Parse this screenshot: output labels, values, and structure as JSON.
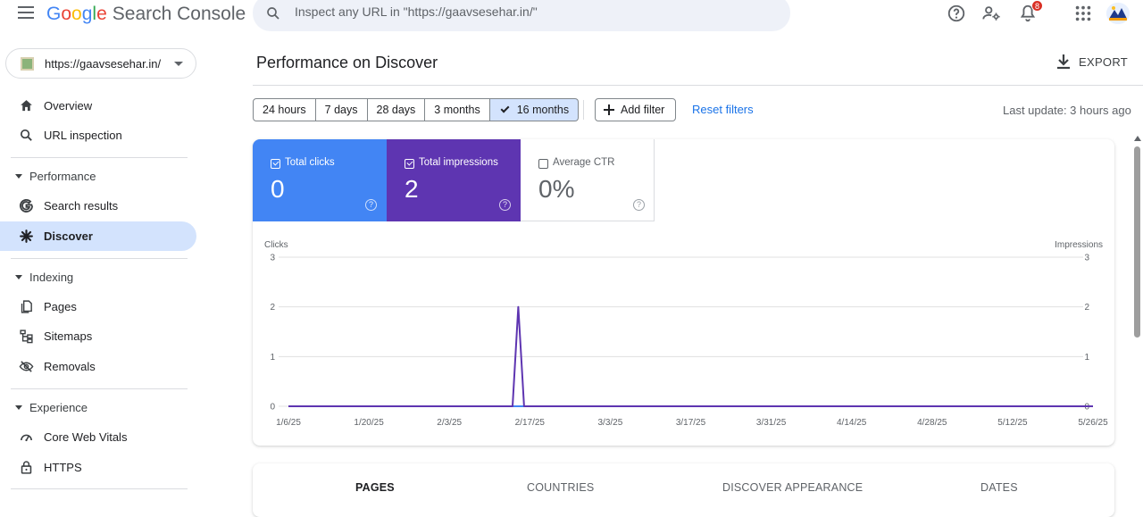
{
  "header": {
    "brand_google": [
      "G",
      "o",
      "o",
      "g",
      "l",
      "e"
    ],
    "brand_product": "Search Console",
    "search_placeholder": "Inspect any URL in \"https://gaavsesehar.in/\"",
    "notifications_count": "8"
  },
  "property": {
    "url": "https://gaavsesehar.in/"
  },
  "sidebar": {
    "top_items": [
      {
        "label": "Overview",
        "icon": "home-icon"
      },
      {
        "label": "URL inspection",
        "icon": "search-icon"
      }
    ],
    "sections": [
      {
        "label": "Performance",
        "items": [
          {
            "label": "Search results",
            "icon": "google-g-icon"
          },
          {
            "label": "Discover",
            "icon": "asterisk-icon",
            "active": true
          }
        ]
      },
      {
        "label": "Indexing",
        "items": [
          {
            "label": "Pages",
            "icon": "pages-icon"
          },
          {
            "label": "Sitemaps",
            "icon": "sitemap-icon"
          },
          {
            "label": "Removals",
            "icon": "removals-icon"
          }
        ]
      },
      {
        "label": "Experience",
        "items": [
          {
            "label": "Core Web Vitals",
            "icon": "gauge-icon"
          },
          {
            "label": "HTTPS",
            "icon": "lock-icon"
          }
        ]
      }
    ]
  },
  "main": {
    "title": "Performance on Discover",
    "export_label": "EXPORT",
    "date_chips": [
      {
        "label": "24 hours"
      },
      {
        "label": "7 days"
      },
      {
        "label": "28 days"
      },
      {
        "label": "3 months"
      },
      {
        "label": "16 months",
        "selected": true
      }
    ],
    "add_filter_label": "Add filter",
    "reset_filters_label": "Reset filters",
    "last_update": "Last update: 3 hours ago",
    "metrics": {
      "clicks": {
        "label": "Total clicks",
        "value": "0",
        "checked": true,
        "color": "#4285f4"
      },
      "impressions": {
        "label": "Total impressions",
        "value": "2",
        "checked": true,
        "color": "#5e35b1"
      },
      "ctr": {
        "label": "Average CTR",
        "value": "0%",
        "checked": false
      }
    },
    "table_tabs": [
      {
        "label": "PAGES",
        "active": true
      },
      {
        "label": "COUNTRIES"
      },
      {
        "label": "DISCOVER APPEARANCE"
      },
      {
        "label": "DATES"
      }
    ]
  },
  "chart_data": {
    "type": "line",
    "ylabel_left": "Clicks",
    "ylabel_right": "Impressions",
    "ylim": [
      0,
      3
    ],
    "yticks": [
      "0",
      "1",
      "2",
      "3"
    ],
    "xticks": [
      "1/6/25",
      "1/20/25",
      "2/3/25",
      "2/17/25",
      "3/3/25",
      "3/17/25",
      "3/31/25",
      "4/14/25",
      "4/28/25",
      "5/12/25",
      "5/26/25"
    ],
    "x_range": [
      "1/6/25",
      "5/26/25"
    ],
    "series": [
      {
        "axis": "left",
        "color": "#4285f4",
        "x": [
          "1/6/25",
          "5/26/25"
        ],
        "values": [
          0,
          0
        ]
      },
      {
        "axis": "right",
        "color": "#5e35b1",
        "x": [
          "1/6/25",
          "2/14/25",
          "2/15/25",
          "2/16/25",
          "5/26/25"
        ],
        "values": [
          0,
          0,
          2,
          0,
          0
        ]
      }
    ],
    "grid": true
  }
}
